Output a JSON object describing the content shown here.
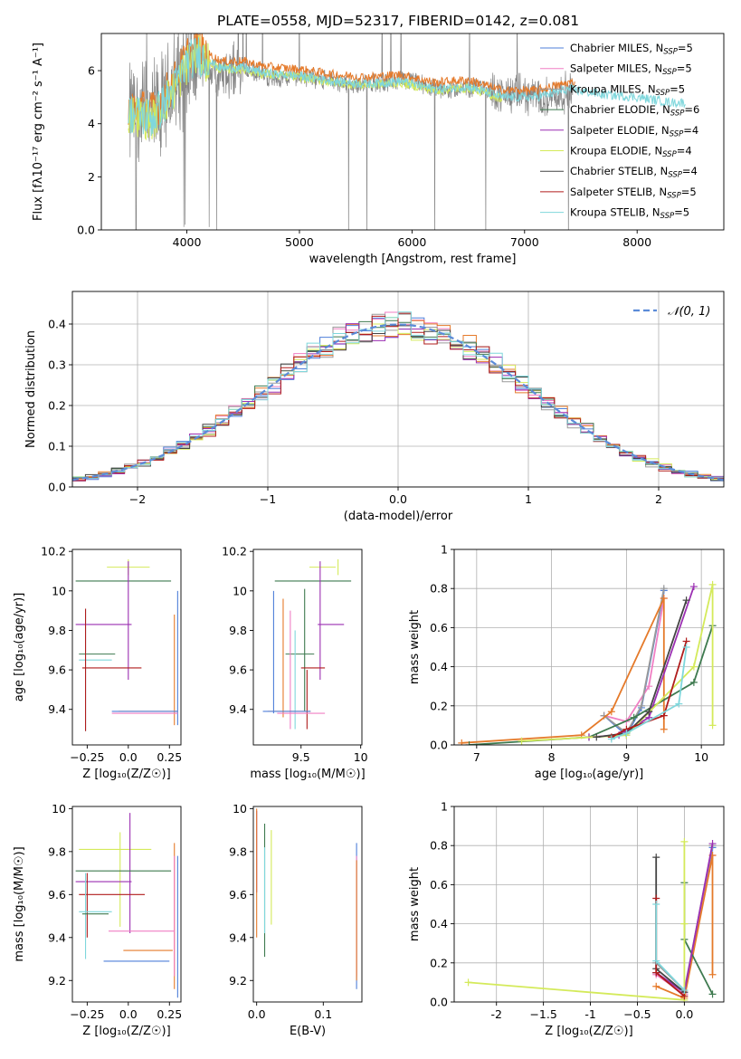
{
  "figure": {
    "title": "PLATE=0558, MJD=52317, FIBERID=0142, z=0.081"
  },
  "colors": {
    "Chabrier MILES": "#4f7fd9",
    "Salpeter MILES": "#f07fc4",
    "Kroupa MILES": "#9a9a9a",
    "Chabrier ELODIE": "#3e7a4f",
    "Salpeter ELODIE": "#9b2fb2",
    "Kroupa ELODIE": "#d4ea5a",
    "Chabrier STELIB": "#444444",
    "Salpeter STELIB": "#b01c1c",
    "Kroupa STELIB": "#7fd7dc",
    "orange": "#e57a2a",
    "gaussian": "#5b8bd8"
  },
  "chart_data": [
    {
      "id": "spectrum",
      "type": "line",
      "xlabel": "wavelength [Angstrom, rest frame]",
      "ylabel": "Flux [fλ10⁻¹⁷ erg cm⁻² s⁻¹ A⁻¹]",
      "xlim": [
        3240,
        8770
      ],
      "ylim": [
        0,
        7.4
      ],
      "xticks": [
        4000,
        5000,
        6000,
        7000,
        8000
      ],
      "yticks": [
        0,
        2,
        4,
        6
      ],
      "legend_position": "top-right",
      "legend": [
        {
          "label": "Chabrier MILES, N",
          "sub": "SSP",
          "tail": "=5",
          "color": "#4f7fd9"
        },
        {
          "label": "Salpeter MILES, N",
          "sub": "SSP",
          "tail": "=5",
          "color": "#f07fc4"
        },
        {
          "label": "Kroupa MILES, N",
          "sub": "SSP",
          "tail": "=5",
          "color": "#9a9a9a"
        },
        {
          "label": "Chabrier ELODIE, N",
          "sub": "SSP",
          "tail": "=6",
          "color": "#3e7a4f"
        },
        {
          "label": "Salpeter ELODIE, N",
          "sub": "SSP",
          "tail": "=4",
          "color": "#9b2fb2"
        },
        {
          "label": "Kroupa ELODIE, N",
          "sub": "SSP",
          "tail": "=4",
          "color": "#d4ea5a"
        },
        {
          "label": "Chabrier STELIB, N",
          "sub": "SSP",
          "tail": "=4",
          "color": "#444444"
        },
        {
          "label": "Salpeter STELIB, N",
          "sub": "SSP",
          "tail": "=5",
          "color": "#b01c1c"
        },
        {
          "label": "Kroupa STELIB, N",
          "sub": "SSP",
          "tail": "=5",
          "color": "#7fd7dc"
        }
      ],
      "continuum_x": [
        3500,
        3600,
        3700,
        3800,
        3900,
        4000,
        4100,
        4200,
        4300,
        4400,
        4500,
        4600,
        4800,
        5000,
        5200,
        5400,
        5600,
        5800,
        6000,
        6200,
        6400,
        6600,
        6800,
        7000,
        7200,
        7400
      ],
      "continuum_y": [
        4.3,
        4.5,
        4.3,
        4.6,
        5.6,
        6.3,
        6.4,
        6.1,
        5.8,
        6.0,
        6.1,
        5.9,
        5.7,
        5.8,
        5.7,
        5.5,
        5.5,
        5.6,
        5.6,
        5.3,
        5.3,
        5.4,
        5.1,
        5.1,
        5.0,
        5.2
      ],
      "model_x": [
        3500,
        3700,
        3900,
        4000,
        4100,
        4300,
        4500,
        4700,
        5000,
        5300,
        5600,
        5900,
        6200,
        6500,
        6800,
        7100,
        7400,
        7700,
        8000,
        8300,
        8500
      ],
      "model_y": [
        4.4,
        4.2,
        5.4,
        6.3,
        6.6,
        6.1,
        6.1,
        5.9,
        5.8,
        5.6,
        5.5,
        5.6,
        5.3,
        5.4,
        5.0,
        5.0,
        5.3,
        5.1,
        5.0,
        4.8,
        4.8
      ]
    },
    {
      "id": "residuals",
      "type": "line",
      "xlabel": "(data-model)/error",
      "ylabel": "Normed distribution",
      "xlim": [
        -2.5,
        2.5
      ],
      "ylim": [
        0,
        0.48
      ],
      "xticks": [
        -2,
        -1,
        0,
        1,
        2
      ],
      "yticks": [
        0.0,
        0.1,
        0.2,
        0.3,
        0.4
      ],
      "legend_position": "top-right",
      "gaussian_label": "𝒩(0, 1)",
      "bin_width": 0.1,
      "bin_start": -2.5
    },
    {
      "id": "age_vs_Z",
      "type": "scatter",
      "xlabel": "Z [log₁₀(Z/Z☉)]",
      "ylabel": "age  [log₁₀(age/yr)]",
      "xlim": [
        -0.34,
        0.32
      ],
      "ylim": [
        9.22,
        10.21
      ],
      "xticks": [
        -0.25,
        0.0,
        0.25
      ],
      "yticks": [
        9.4,
        9.6,
        9.8,
        10.0,
        10.2
      ],
      "errorbars": [
        {
          "x": 0.0,
          "xe": 0.13,
          "y": 10.12,
          "ye": 0.04,
          "c": "#d4ea5a"
        },
        {
          "x": -0.03,
          "xe": 0.29,
          "y": 10.05,
          "ye": 0.0,
          "c": "#3e7a4f"
        },
        {
          "x": 0.0,
          "xe": 0.0,
          "y": 9.85,
          "ye": 0.3,
          "c": "#9b2fb2"
        },
        {
          "x": -0.15,
          "xe": 0.17,
          "y": 9.83,
          "ye": 0.0,
          "c": "#9b2fb2"
        },
        {
          "x": -0.19,
          "xe": 0.11,
          "y": 9.68,
          "ye": 0.0,
          "c": "#3e7a4f"
        },
        {
          "x": -0.2,
          "xe": 0.1,
          "y": 9.65,
          "ye": 0.0,
          "c": "#7fd7dc"
        },
        {
          "x": -0.26,
          "xe": 0.0,
          "y": 9.6,
          "ye": 0.31,
          "c": "#7fd7dc"
        },
        {
          "x": -0.26,
          "xe": 0.0,
          "y": 9.6,
          "ye": 0.31,
          "c": "#b01c1c"
        },
        {
          "x": -0.1,
          "xe": 0.18,
          "y": 9.61,
          "ye": 0.0,
          "c": "#b01c1c"
        },
        {
          "x": 0.28,
          "xe": 0.0,
          "y": 9.6,
          "ye": 0.28,
          "c": "#e57a2a"
        },
        {
          "x": 0.3,
          "xe": 0.0,
          "y": 9.66,
          "ye": 0.34,
          "c": "#4f7fd9"
        },
        {
          "x": 0.12,
          "xe": 0.18,
          "y": 9.39,
          "ye": 0.0,
          "c": "#e57a2a"
        },
        {
          "x": 0.1,
          "xe": 0.2,
          "y": 9.39,
          "ye": 0.0,
          "c": "#4f7fd9"
        },
        {
          "x": 0.1,
          "xe": 0.2,
          "y": 9.38,
          "ye": 0.0,
          "c": "#f07fc4"
        }
      ]
    },
    {
      "id": "age_vs_mass",
      "type": "scatter",
      "xlabel": "mass [log₁₀(M/M☉)]",
      "ylabel": "",
      "xlim": [
        9.1,
        10.01
      ],
      "ylim": [
        9.22,
        10.21
      ],
      "xticks": [
        9.5,
        10.0
      ],
      "yticks": [
        9.4,
        9.6,
        9.8,
        10.0,
        10.2
      ],
      "errorbars": [
        {
          "x": 9.6,
          "xe": 0.32,
          "y": 10.05,
          "ye": 0.0,
          "c": "#3e7a4f"
        },
        {
          "x": 9.68,
          "xe": 0.11,
          "y": 10.12,
          "ye": 0.0,
          "c": "#d4ea5a"
        },
        {
          "x": 9.81,
          "xe": 0.0,
          "y": 10.12,
          "ye": 0.04,
          "c": "#d4ea5a"
        },
        {
          "x": 9.66,
          "xe": 0.0,
          "y": 9.85,
          "ye": 0.3,
          "c": "#9b2fb2"
        },
        {
          "x": 9.75,
          "xe": 0.11,
          "y": 9.83,
          "ye": 0.0,
          "c": "#9b2fb2"
        },
        {
          "x": 9.53,
          "xe": 0.0,
          "y": 9.7,
          "ye": 0.31,
          "c": "#3e7a4f"
        },
        {
          "x": 9.49,
          "xe": 0.12,
          "y": 9.68,
          "ye": 0.0,
          "c": "#3e7a4f"
        },
        {
          "x": 9.27,
          "xe": 0.0,
          "y": 9.69,
          "ye": 0.31,
          "c": "#4f7fd9"
        },
        {
          "x": 9.35,
          "xe": 0.0,
          "y": 9.66,
          "ye": 0.3,
          "c": "#e57a2a"
        },
        {
          "x": 9.41,
          "xe": 0.0,
          "y": 9.6,
          "ye": 0.3,
          "c": "#f07fc4"
        },
        {
          "x": 9.45,
          "xe": 0.0,
          "y": 9.55,
          "ye": 0.25,
          "c": "#7fd7dc"
        },
        {
          "x": 9.55,
          "xe": 0.0,
          "y": 9.45,
          "ye": 0.15,
          "c": "#b01c1c"
        },
        {
          "x": 9.6,
          "xe": 0.1,
          "y": 9.61,
          "ye": 0.0,
          "c": "#b01c1c"
        },
        {
          "x": 9.4,
          "xe": 0.18,
          "y": 9.39,
          "ye": 0.0,
          "c": "#e57a2a"
        },
        {
          "x": 9.38,
          "xe": 0.2,
          "y": 9.39,
          "ye": 0.0,
          "c": "#4f7fd9"
        },
        {
          "x": 9.5,
          "xe": 0.2,
          "y": 9.38,
          "ye": 0.0,
          "c": "#f07fc4"
        }
      ]
    },
    {
      "id": "weight_vs_age",
      "type": "line",
      "xlabel": "age  [log₁₀(age/yr)]",
      "ylabel": "mass weight",
      "xlim": [
        6.7,
        10.3
      ],
      "ylim": [
        0,
        1.0
      ],
      "xticks": [
        7,
        8,
        9,
        10
      ],
      "yticks": [
        0.0,
        0.2,
        0.4,
        0.6,
        0.8,
        1.0
      ],
      "series": [
        {
          "c": "#4f7fd9",
          "x": [
            8.7,
            9.0,
            9.2,
            9.5
          ],
          "y": [
            0.15,
            0.05,
            0.19,
            0.79
          ]
        },
        {
          "c": "#f07fc4",
          "x": [
            8.7,
            9.0,
            9.3,
            9.5
          ],
          "y": [
            0.15,
            0.12,
            0.3,
            0.75
          ]
        },
        {
          "c": "#9a9a9a",
          "x": [
            8.7,
            9.0,
            9.2,
            9.5
          ],
          "y": [
            0.15,
            0.06,
            0.2,
            0.8
          ]
        },
        {
          "c": "#e57a2a",
          "x": [
            6.8,
            8.4,
            8.8,
            9.5,
            9.5
          ],
          "y": [
            0.01,
            0.05,
            0.17,
            0.75,
            0.08
          ]
        },
        {
          "c": "#3e7a4f",
          "x": [
            6.9,
            8.5,
            9.1,
            9.9,
            10.15
          ],
          "y": [
            0.0,
            0.04,
            0.14,
            0.32,
            0.61
          ]
        },
        {
          "c": "#9b2fb2",
          "x": [
            8.5,
            8.9,
            9.3,
            9.9
          ],
          "y": [
            0.04,
            0.05,
            0.14,
            0.81
          ]
        },
        {
          "c": "#d4ea5a",
          "x": [
            7.6,
            9.0,
            9.9,
            10.15,
            10.15
          ],
          "y": [
            0.02,
            0.05,
            0.4,
            0.82,
            0.1
          ]
        },
        {
          "c": "#444444",
          "x": [
            8.6,
            9.0,
            9.3,
            9.8
          ],
          "y": [
            0.04,
            0.06,
            0.17,
            0.74
          ]
        },
        {
          "c": "#b01c1c",
          "x": [
            8.8,
            9.0,
            9.5,
            9.8
          ],
          "y": [
            0.04,
            0.08,
            0.15,
            0.53
          ]
        },
        {
          "c": "#7fd7dc",
          "x": [
            8.8,
            9.0,
            9.7,
            9.8
          ],
          "y": [
            0.03,
            0.06,
            0.21,
            0.5
          ]
        }
      ]
    },
    {
      "id": "mass_vs_Z",
      "type": "scatter",
      "xlabel": "Z [log₁₀(Z/Z☉)]",
      "ylabel": "mass [log₁₀(M/M☉)]",
      "xlim": [
        -0.34,
        0.32
      ],
      "ylim": [
        9.1,
        10.01
      ],
      "xticks": [
        -0.25,
        0.0,
        0.25
      ],
      "yticks": [
        9.2,
        9.4,
        9.6,
        9.8,
        10.0
      ],
      "errorbars": [
        {
          "x": -0.08,
          "xe": 0.22,
          "y": 9.81,
          "ye": 0.0,
          "c": "#d4ea5a"
        },
        {
          "x": -0.05,
          "xe": 0.0,
          "y": 9.67,
          "ye": 0.22,
          "c": "#d4ea5a"
        },
        {
          "x": 0.01,
          "xe": 0.0,
          "y": 9.7,
          "ye": 0.28,
          "c": "#9b2fb2"
        },
        {
          "x": -0.03,
          "xe": 0.29,
          "y": 9.71,
          "ye": 0.0,
          "c": "#3e7a4f"
        },
        {
          "x": -0.15,
          "xe": 0.17,
          "y": 9.66,
          "ye": 0.0,
          "c": "#9b2fb2"
        },
        {
          "x": -0.1,
          "xe": 0.2,
          "y": 9.6,
          "ye": 0.0,
          "c": "#b01c1c"
        },
        {
          "x": -0.25,
          "xe": 0.0,
          "y": 9.55,
          "ye": 0.15,
          "c": "#b01c1c"
        },
        {
          "x": -0.26,
          "xe": 0.0,
          "y": 9.5,
          "ye": 0.2,
          "c": "#7fd7dc"
        },
        {
          "x": -0.2,
          "xe": 0.1,
          "y": 9.52,
          "ye": 0.0,
          "c": "#7fd7dc"
        },
        {
          "x": -0.2,
          "xe": 0.08,
          "y": 9.51,
          "ye": 0.0,
          "c": "#3e7a4f"
        },
        {
          "x": 0.28,
          "xe": 0.0,
          "y": 9.5,
          "ye": 0.34,
          "c": "#e57a2a"
        },
        {
          "x": 0.3,
          "xe": 0.0,
          "y": 9.45,
          "ye": 0.33,
          "c": "#4f7fd9"
        },
        {
          "x": 0.28,
          "xe": 0.0,
          "y": 9.5,
          "ye": 0.28,
          "c": "#f07fc4"
        },
        {
          "x": 0.08,
          "xe": 0.2,
          "y": 9.43,
          "ye": 0.0,
          "c": "#f07fc4"
        },
        {
          "x": 0.12,
          "xe": 0.15,
          "y": 9.34,
          "ye": 0.0,
          "c": "#e57a2a"
        },
        {
          "x": 0.05,
          "xe": 0.2,
          "y": 9.29,
          "ye": 0.0,
          "c": "#4f7fd9"
        }
      ]
    },
    {
      "id": "mass_vs_ebv",
      "type": "scatter",
      "xlabel": "E(B-V)",
      "ylabel": "",
      "xlim": [
        -0.005,
        0.158
      ],
      "ylim": [
        9.1,
        10.01
      ],
      "xticks": [
        0.0,
        0.1
      ],
      "yticks": [
        9.2,
        9.4,
        9.6,
        9.8,
        10.0
      ],
      "errorbars": [
        {
          "x": 0.0,
          "xe": 0.0,
          "y": 9.8,
          "ye": 0.19,
          "c": "#9b2fb2"
        },
        {
          "x": 0.0,
          "xe": 0.0,
          "y": 9.7,
          "ye": 0.3,
          "c": "#e57a2a"
        },
        {
          "x": 0.012,
          "xe": 0.0,
          "y": 9.62,
          "ye": 0.31,
          "c": "#3e7a4f"
        },
        {
          "x": 0.012,
          "xe": 0.0,
          "y": 9.62,
          "ye": 0.2,
          "c": "#7fd7dc"
        },
        {
          "x": 0.022,
          "xe": 0.0,
          "y": 9.68,
          "ye": 0.22,
          "c": "#d4ea5a"
        },
        {
          "x": 0.15,
          "xe": 0.0,
          "y": 9.5,
          "ye": 0.34,
          "c": "#4f7fd9"
        },
        {
          "x": 0.15,
          "xe": 0.0,
          "y": 9.5,
          "ye": 0.28,
          "c": "#f07fc4"
        },
        {
          "x": 0.15,
          "xe": 0.0,
          "y": 9.48,
          "ye": 0.28,
          "c": "#e57a2a"
        }
      ]
    },
    {
      "id": "weight_vs_Z",
      "type": "line",
      "xlabel": "Z [log₁₀(Z/Z☉)]",
      "ylabel": "mass weight",
      "xlim": [
        -2.45,
        0.42
      ],
      "ylim": [
        0,
        1.0
      ],
      "xticks": [
        -2.0,
        -1.5,
        -1.0,
        -0.5,
        0.0
      ],
      "yticks": [
        0.0,
        0.2,
        0.4,
        0.6,
        0.8,
        1.0
      ],
      "series": [
        {
          "c": "#4f7fd9",
          "x": [
            -0.3,
            0.0,
            0.3
          ],
          "y": [
            0.15,
            0.04,
            0.79
          ]
        },
        {
          "c": "#f07fc4",
          "x": [
            -0.3,
            0.0,
            0.3
          ],
          "y": [
            0.14,
            0.04,
            0.75
          ]
        },
        {
          "c": "#9a9a9a",
          "x": [
            -0.3,
            0.0,
            0.3
          ],
          "y": [
            0.2,
            0.06,
            0.8
          ]
        },
        {
          "c": "#e57a2a",
          "x": [
            -0.3,
            0.0,
            0.3,
            0.3
          ],
          "y": [
            0.08,
            0.02,
            0.75,
            0.14
          ]
        },
        {
          "c": "#3e7a4f",
          "x": [
            0.0,
            0.0,
            0.3
          ],
          "y": [
            0.61,
            0.32,
            0.04
          ]
        },
        {
          "c": "#9b2fb2",
          "x": [
            -0.3,
            0.0,
            0.3
          ],
          "y": [
            0.15,
            0.05,
            0.81
          ]
        },
        {
          "c": "#d4ea5a",
          "x": [
            -2.3,
            0.0,
            0.0,
            0.0
          ],
          "y": [
            0.1,
            0.01,
            0.82,
            0.4
          ]
        },
        {
          "c": "#444444",
          "x": [
            -0.3,
            -0.3,
            0.0
          ],
          "y": [
            0.74,
            0.17,
            0.05
          ]
        },
        {
          "c": "#b01c1c",
          "x": [
            -0.3,
            -0.3,
            0.0
          ],
          "y": [
            0.53,
            0.15,
            0.03
          ]
        },
        {
          "c": "#7fd7dc",
          "x": [
            -0.3,
            -0.3,
            0.0
          ],
          "y": [
            0.5,
            0.21,
            0.06
          ]
        }
      ]
    }
  ]
}
